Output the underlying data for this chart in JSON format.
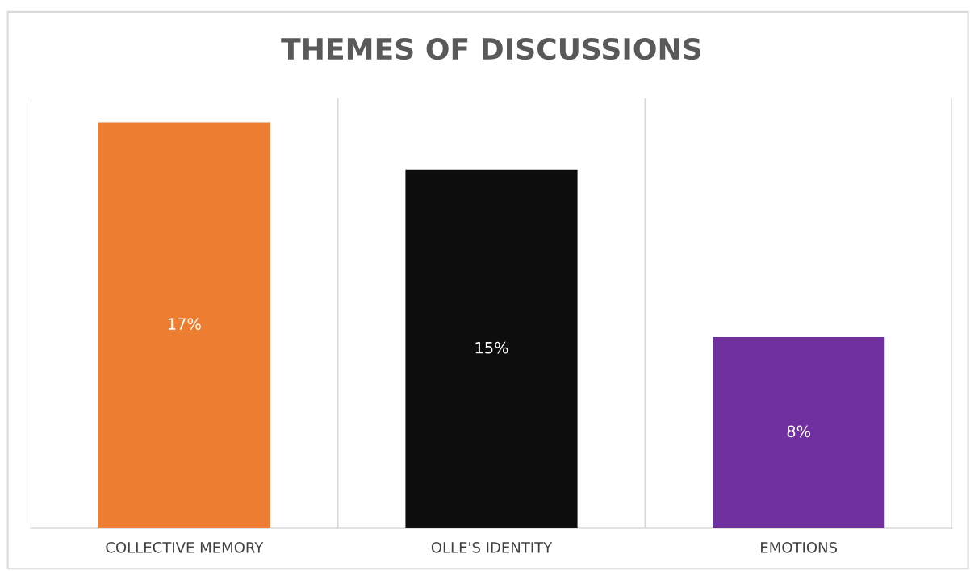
{
  "chart_data": {
    "type": "bar",
    "title": "THEMES OF DISCUSSIONS",
    "categories": [
      "COLLECTIVE MEMORY",
      "OLLE'S IDENTITY",
      "EMOTIONS"
    ],
    "values": [
      17,
      15,
      8
    ],
    "colors": [
      "#ed7d31",
      "#0d0d0d",
      "#7030a0"
    ],
    "value_labels": [
      "17%",
      "15%",
      "8%"
    ],
    "ylim": [
      0,
      18
    ],
    "grid": "x",
    "tick_labels": "x"
  }
}
